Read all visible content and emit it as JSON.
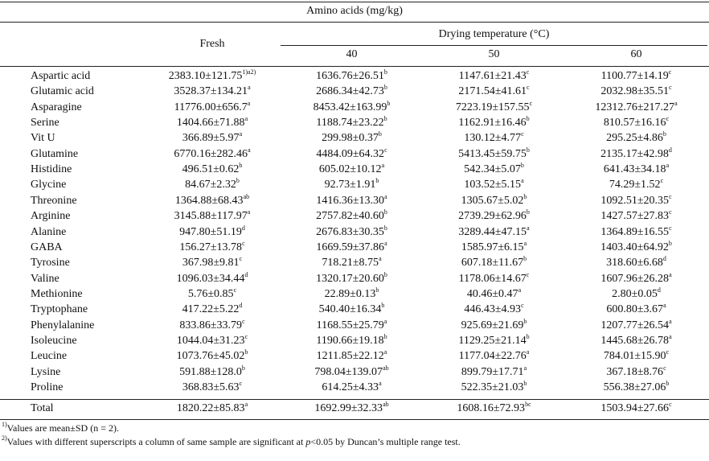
{
  "table": {
    "title": "Amino acids (mg/kg)",
    "fresh_label": "Fresh",
    "drying_label": "Drying temperature (°C)",
    "temps": [
      "40",
      "50",
      "60"
    ],
    "rows": [
      {
        "name": "Aspartic acid",
        "cells": [
          {
            "v": "2383.10±121.75",
            "s": "1)a2)"
          },
          {
            "v": "1636.76±26.51",
            "s": "b"
          },
          {
            "v": "1147.61±21.43",
            "s": "c"
          },
          {
            "v": "1100.77±14.19",
            "s": "c"
          }
        ]
      },
      {
        "name": "Glutamic acid",
        "cells": [
          {
            "v": "3528.37±134.21",
            "s": "a"
          },
          {
            "v": "2686.34±42.73",
            "s": "b"
          },
          {
            "v": "2171.54±41.61",
            "s": "c"
          },
          {
            "v": "2032.98±35.51",
            "s": "c"
          }
        ]
      },
      {
        "name": "Asparagine",
        "cells": [
          {
            "v": "11776.00±656.7",
            "s": "a"
          },
          {
            "v": "8453.42±163.99",
            "s": "b"
          },
          {
            "v": "7223.19±157.55",
            "s": "c"
          },
          {
            "v": "12312.76±217.27",
            "s": "a"
          }
        ]
      },
      {
        "name": "Serine",
        "cells": [
          {
            "v": "1404.66±71.88",
            "s": "a"
          },
          {
            "v": "1188.74±23.22",
            "s": "b"
          },
          {
            "v": "1162.91±16.46",
            "s": "b"
          },
          {
            "v": "810.57±16.16",
            "s": "c"
          }
        ]
      },
      {
        "name": "Vit U",
        "cells": [
          {
            "v": "366.89±5.97",
            "s": "a"
          },
          {
            "v": "299.98±0.37",
            "s": "b"
          },
          {
            "v": "130.12±4.77",
            "s": "c"
          },
          {
            "v": "295.25±4.86",
            "s": "b"
          }
        ]
      },
      {
        "name": "Glutamine",
        "cells": [
          {
            "v": "6770.16±282.46",
            "s": "a"
          },
          {
            "v": "4484.09±64.32",
            "s": "c"
          },
          {
            "v": "5413.45±59.75",
            "s": "b"
          },
          {
            "v": "2135.17±42.98",
            "s": "d"
          }
        ]
      },
      {
        "name": "Histidine",
        "cells": [
          {
            "v": "496.51±0.62",
            "s": "b"
          },
          {
            "v": "605.02±10.12",
            "s": "a"
          },
          {
            "v": "542.34±5.07",
            "s": "b"
          },
          {
            "v": "641.43±34.18",
            "s": "a"
          }
        ]
      },
      {
        "name": "Glycine",
        "cells": [
          {
            "v": "84.67±2.32",
            "s": "b"
          },
          {
            "v": "92.73±1.91",
            "s": "b"
          },
          {
            "v": "103.52±5.15",
            "s": "a"
          },
          {
            "v": "74.29±1.52",
            "s": "c"
          }
        ]
      },
      {
        "name": "Threonine",
        "cells": [
          {
            "v": "1364.88±68.43",
            "s": "ab"
          },
          {
            "v": "1416.36±13.30",
            "s": "a"
          },
          {
            "v": "1305.67±5.02",
            "s": "b"
          },
          {
            "v": "1092.51±20.35",
            "s": "c"
          }
        ]
      },
      {
        "name": "Arginine",
        "cells": [
          {
            "v": "3145.88±117.97",
            "s": "a"
          },
          {
            "v": "2757.82±40.60",
            "s": "b"
          },
          {
            "v": "2739.29±62.96",
            "s": "b"
          },
          {
            "v": "1427.57±27.83",
            "s": "c"
          }
        ]
      },
      {
        "name": "Alanine",
        "cells": [
          {
            "v": "947.80±51.19",
            "s": "d"
          },
          {
            "v": "2676.83±30.35",
            "s": "b"
          },
          {
            "v": "3289.44±47.15",
            "s": "a"
          },
          {
            "v": "1364.89±16.55",
            "s": "c"
          }
        ]
      },
      {
        "name": "GABA",
        "cells": [
          {
            "v": "156.27±13.78",
            "s": "c"
          },
          {
            "v": "1669.59±37.86",
            "s": "a"
          },
          {
            "v": "1585.97±6.15",
            "s": "a"
          },
          {
            "v": "1403.40±64.92",
            "s": "b"
          }
        ]
      },
      {
        "name": "Tyrosine",
        "cells": [
          {
            "v": "367.98±9.81",
            "s": "c"
          },
          {
            "v": "718.21±8.75",
            "s": "a"
          },
          {
            "v": "607.18±11.67",
            "s": "b"
          },
          {
            "v": "318.60±6.68",
            "s": "d"
          }
        ]
      },
      {
        "name": "Valine",
        "cells": [
          {
            "v": "1096.03±34.44",
            "s": "d"
          },
          {
            "v": "1320.17±20.60",
            "s": "b"
          },
          {
            "v": "1178.06±14.67",
            "s": "c"
          },
          {
            "v": "1607.96±26.28",
            "s": "a"
          }
        ]
      },
      {
        "name": "Methionine",
        "cells": [
          {
            "v": "5.76±0.85",
            "s": "c"
          },
          {
            "v": "22.89±0.13",
            "s": "b"
          },
          {
            "v": "40.46±0.47",
            "s": "a"
          },
          {
            "v": "2.80±0.05",
            "s": "d"
          }
        ]
      },
      {
        "name": "Tryptophane",
        "cells": [
          {
            "v": "417.22±5.22",
            "s": "d"
          },
          {
            "v": "540.40±16.34",
            "s": "b"
          },
          {
            "v": "446.43±4.93",
            "s": "c"
          },
          {
            "v": "600.80±3.67",
            "s": "a"
          }
        ]
      },
      {
        "name": "Phenylalanine",
        "cells": [
          {
            "v": "833.86±33.79",
            "s": "c"
          },
          {
            "v": "1168.55±25.79",
            "s": "a"
          },
          {
            "v": "925.69±21.69",
            "s": "b"
          },
          {
            "v": "1207.77±26.54",
            "s": "a"
          }
        ]
      },
      {
        "name": "Isoleucine",
        "cells": [
          {
            "v": "1044.04±31.23",
            "s": "c"
          },
          {
            "v": "1190.66±19.18",
            "s": "b"
          },
          {
            "v": "1129.25±21.14",
            "s": "b"
          },
          {
            "v": "1445.68±26.78",
            "s": "a"
          }
        ]
      },
      {
        "name": "Leucine",
        "cells": [
          {
            "v": "1073.76±45.02",
            "s": "b"
          },
          {
            "v": "1211.85±22.12",
            "s": "a"
          },
          {
            "v": "1177.04±22.76",
            "s": "a"
          },
          {
            "v": "784.01±15.90",
            "s": "c"
          }
        ]
      },
      {
        "name": "Lysine",
        "cells": [
          {
            "v": "591.88±128.0",
            "s": "b"
          },
          {
            "v": "798.04±139.07",
            "s": "ab"
          },
          {
            "v": "899.79±17.71",
            "s": "a"
          },
          {
            "v": "367.18±8.76",
            "s": "c"
          }
        ]
      },
      {
        "name": "Proline",
        "cells": [
          {
            "v": "368.83±5.63",
            "s": "c"
          },
          {
            "v": "614.25±4.33",
            "s": "a"
          },
          {
            "v": "522.35±21.03",
            "s": "b"
          },
          {
            "v": "556.38±27.06",
            "s": "b"
          }
        ]
      }
    ],
    "total": {
      "name": "Total",
      "cells": [
        {
          "v": "1820.22±85.83",
          "s": "a"
        },
        {
          "v": "1692.99±32.33",
          "s": "ab"
        },
        {
          "v": "1608.16±72.93",
          "s": "bc"
        },
        {
          "v": "1503.94±27.66",
          "s": "c"
        }
      ]
    }
  },
  "footnotes": {
    "note1_sup": "1)",
    "note1_text": "Values are mean±SD (n = 2).",
    "note2_sup": "2)",
    "note2_pre": "Values with different superscripts a column of same sample are significant at ",
    "note2_italic": "p",
    "note2_post": "<0.05 by Duncan’s multiple range test."
  }
}
